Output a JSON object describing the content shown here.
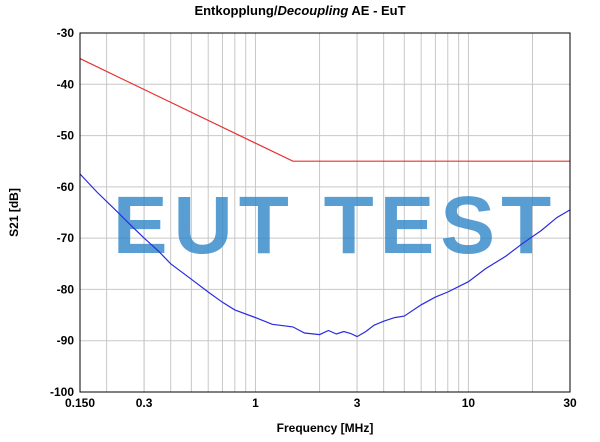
{
  "title": {
    "part1": "Entkopplung/",
    "part2": "Decoupling",
    "part3": " AE - EuT"
  },
  "watermark": {
    "text": "EUT TEST",
    "color": "#2f86c8"
  },
  "chart_data": {
    "type": "line",
    "title": "Entkopplung/Decoupling AE - EuT",
    "xlabel": "Frequency [MHz]",
    "ylabel": "S21 [dB]",
    "xscale": "log",
    "xlim": [
      0.15,
      30
    ],
    "ylim": [
      -100,
      -30
    ],
    "grid": true,
    "legend": "none",
    "x_ticks": [
      0.15,
      0.3,
      1,
      3,
      10,
      30
    ],
    "x_tick_labels": [
      "0.150",
      "0.3",
      "1",
      "3",
      "10",
      "30"
    ],
    "y_ticks": [
      -30,
      -40,
      -50,
      -60,
      -70,
      -80,
      -90,
      -100
    ],
    "y_tick_labels": [
      "-30",
      "-40",
      "-50",
      "-60",
      "-70",
      "-80",
      "-90",
      "-100"
    ],
    "series": [
      {
        "color": "#e83030",
        "x": [
          0.15,
          1.5,
          30
        ],
        "y": [
          -35,
          -55,
          -55
        ]
      },
      {
        "color": "#2a2ae0",
        "x": [
          0.15,
          0.18,
          0.22,
          0.26,
          0.3,
          0.35,
          0.4,
          0.5,
          0.6,
          0.7,
          0.8,
          1.0,
          1.2,
          1.5,
          1.7,
          2.0,
          2.2,
          2.4,
          2.6,
          2.8,
          3.0,
          3.3,
          3.6,
          4.0,
          4.5,
          5.0,
          6.0,
          7.0,
          8.0,
          10.0,
          12.0,
          15.0,
          18.0,
          22.0,
          26.0,
          30.0
        ],
        "y": [
          -57.5,
          -61,
          -64.5,
          -67.5,
          -70,
          -72.5,
          -75,
          -78,
          -80.5,
          -82.5,
          -84,
          -85.5,
          -86.8,
          -87.3,
          -88.5,
          -88.8,
          -88,
          -88.7,
          -88.2,
          -88.6,
          -89.2,
          -88.2,
          -87,
          -86.2,
          -85.5,
          -85.2,
          -83,
          -81.5,
          -80.5,
          -78.5,
          -76,
          -73.5,
          -71,
          -68.5,
          -66,
          -64.5
        ]
      }
    ]
  }
}
